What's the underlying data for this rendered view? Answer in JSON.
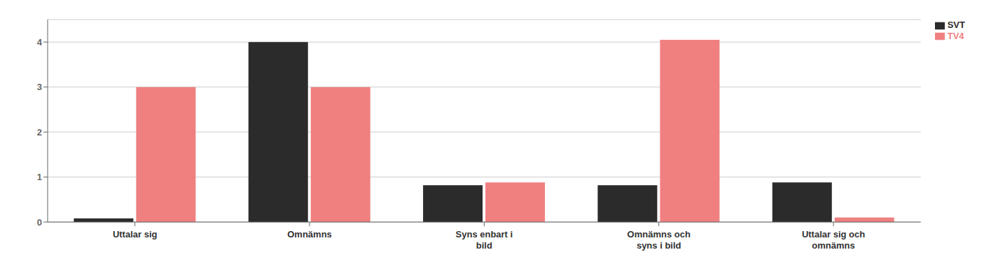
{
  "chart_data": {
    "type": "bar",
    "categories": [
      "Uttalar sig",
      "Omnämns",
      "Syns enbart i\nbild",
      "Omnämns och\nsyns i bild",
      "Uttalar sig och\nomnämns"
    ],
    "series": [
      {
        "name": "SVT",
        "color": "#2b2b2b",
        "values": [
          0.08,
          4.0,
          0.82,
          0.82,
          0.88
        ]
      },
      {
        "name": "TV4",
        "color": "#f08080",
        "values": [
          3.0,
          3.0,
          0.88,
          4.05,
          0.1
        ]
      }
    ],
    "ylim": [
      0,
      4.5
    ],
    "yticks": [
      0,
      1,
      2,
      3,
      4
    ],
    "grid": true,
    "legend": "upper right"
  }
}
